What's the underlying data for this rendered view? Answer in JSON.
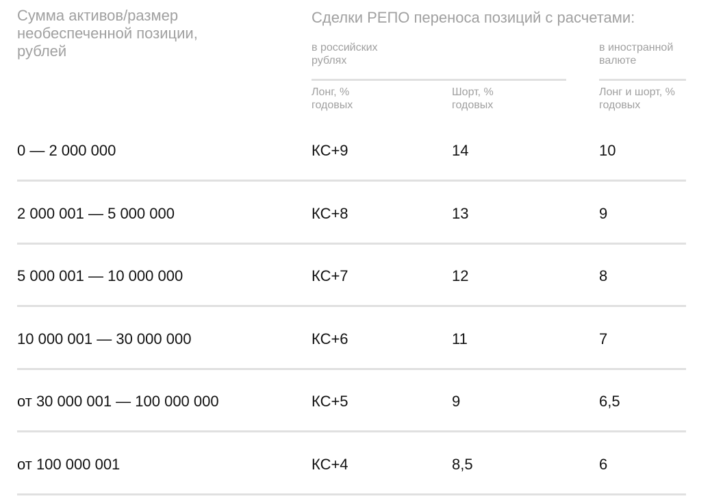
{
  "header": {
    "amount_col": "Сумма активов/размер необеспеченной позиции, рублей",
    "repo_title": "Сделки РЕПО переноса позиций с расчетами:",
    "rub_group": "в российских рублях",
    "fx_group": "в иностранной валюте",
    "long_col": "Лонг, % годовых",
    "short_col": "Шорт, % годовых",
    "fx_col": "Лонг и шорт, % годовых"
  },
  "rows": [
    {
      "amount": "0 — 2 000 000",
      "long": "КС+9",
      "short": "14",
      "fx": "10"
    },
    {
      "amount": "2 000 001 — 5 000 000",
      "long": "КС+8",
      "short": "13",
      "fx": "9"
    },
    {
      "amount": "5 000 001 — 10 000 000",
      "long": "КС+7",
      "short": "12",
      "fx": "8"
    },
    {
      "amount": "10 000 001 — 30 000 000",
      "long": "КС+6",
      "short": "11",
      "fx": "7"
    },
    {
      "amount": "от 30 000 001 — 100 000 000",
      "long": "КС+5",
      "short": "9",
      "fx": "6,5"
    },
    {
      "amount": "от 100 000 001",
      "long": "КС+4",
      "short": "8,5",
      "fx": "6"
    }
  ]
}
